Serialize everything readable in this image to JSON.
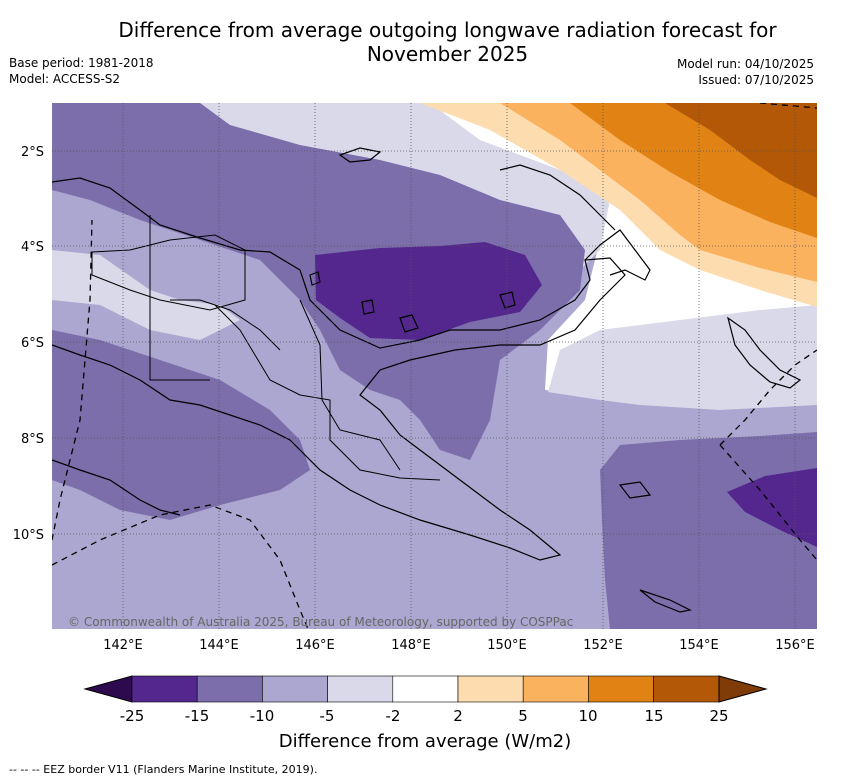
{
  "header": {
    "title": "Difference from average outgoing longwave radiation forecast for\nNovember 2025",
    "base_period": "Base period: 1981-2018",
    "model": "Model: ACCESS-S2",
    "model_run": "Model run: 04/10/2025",
    "issued": "Issued: 07/10/2025"
  },
  "map": {
    "lat_labels": [
      "2°S",
      "4°S",
      "6°S",
      "8°S",
      "10°S"
    ],
    "lon_labels": [
      "142°E",
      "144°E",
      "146°E",
      "148°E",
      "150°E",
      "152°E",
      "154°E",
      "156°E"
    ],
    "copyright": "© Commonwealth of Australia 2025, Bureau of Meteorology, supported by COSPPac"
  },
  "colorbar": {
    "labels": [
      "-25",
      "-15",
      "-10",
      "-5",
      "-2",
      "2",
      "5",
      "10",
      "15",
      "25"
    ],
    "colors": [
      "#2d0a4e",
      "#54278f",
      "#7b6eab",
      "#aca7d0",
      "#d9d9ea",
      "#ffffff",
      "#fddcb0",
      "#fbb25e",
      "#e08214",
      "#b35806",
      "#7f3b08"
    ],
    "title": "Difference from average (W/m2)"
  },
  "footnote": "--  --  -- EEZ border V11 (Flanders Marine Institute, 2019)."
}
